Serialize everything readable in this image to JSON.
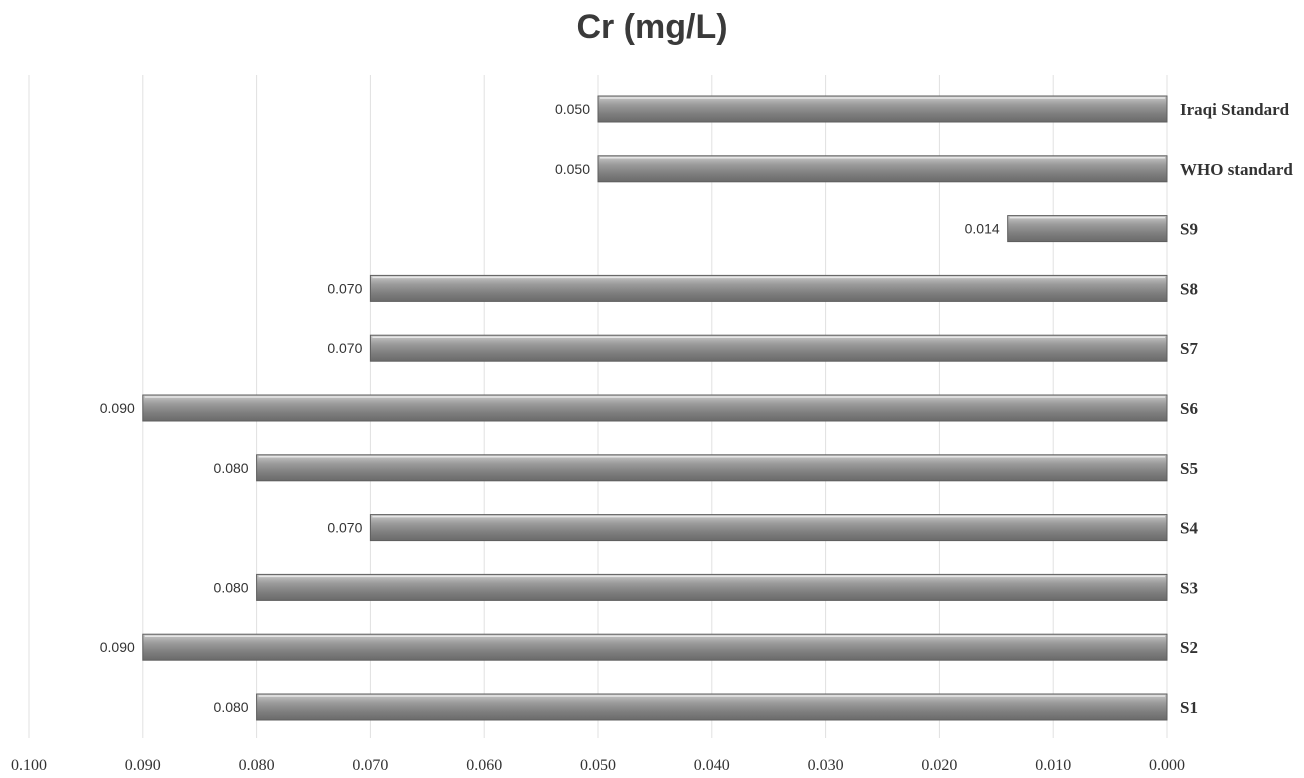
{
  "chart_data": {
    "type": "bar",
    "orientation": "horizontal",
    "x_axis_reversed": true,
    "title": "Cr (mg/L)",
    "xlabel": "",
    "ylabel": "",
    "categories": [
      "S1",
      "S2",
      "S3",
      "S4",
      "S5",
      "S6",
      "S7",
      "S8",
      "S9",
      "WHO standard",
      "Iraqi Standard"
    ],
    "values": [
      0.08,
      0.09,
      0.08,
      0.07,
      0.08,
      0.09,
      0.07,
      0.07,
      0.014,
      0.05,
      0.05
    ],
    "value_labels": [
      "0.080",
      "0.090",
      "0.080",
      "0.070",
      "0.080",
      "0.090",
      "0.070",
      "0.070",
      "0.014",
      "0.050",
      "0.050"
    ],
    "xlim": [
      0,
      0.1
    ],
    "x_ticks": [
      "0.000",
      "0.010",
      "0.020",
      "0.030",
      "0.040",
      "0.050",
      "0.060",
      "0.070",
      "0.080",
      "0.090",
      "0.100"
    ],
    "grid": true,
    "legend": "none",
    "colors": {
      "bar": "#8f8f8f",
      "bar_edge": "#5e5e5e",
      "grid": "#e0e0e0"
    }
  }
}
